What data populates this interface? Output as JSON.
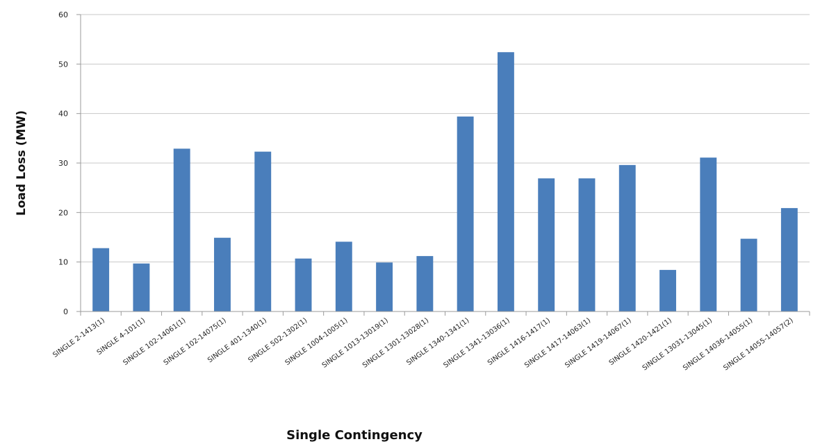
{
  "chart_data": {
    "type": "bar",
    "title": "",
    "xlabel": "Single Contingency",
    "ylabel": "Load Loss (MW)",
    "ylim": [
      0,
      60
    ],
    "yticks": [
      0,
      10,
      20,
      30,
      40,
      50,
      60
    ],
    "grid": true,
    "legend": "none",
    "bar_color": "#4a7ebb",
    "categories": [
      "SINGLE 2-1413(1)",
      "SINGLE 4-101(1)",
      "SINGLE 102-14061(1)",
      "SINGLE 102-14075(1)",
      "SINGLE 401-1340(1)",
      "SINGLE 502-1302(1)",
      "SINGLE 1004-1005(1)",
      "SINGLE 1013-13019(1)",
      "SINGLE 1301-13028(1)",
      "SINGLE 1340-1341(1)",
      "SINGLE 1341-13036(1)",
      "SINGLE 1416-1417(1)",
      "SINGLE 1417-14063(1)",
      "SINGLE 1419-14067(1)",
      "SINGLE 1420-1421(1)",
      "SINGLE 13031-13045(1)",
      "SINGLE 14036-14055(1)",
      "SINGLE 14055-14057(2)"
    ],
    "values": [
      12.8,
      9.7,
      32.9,
      14.9,
      32.3,
      10.7,
      14.1,
      9.9,
      11.2,
      39.4,
      52.4,
      26.9,
      26.9,
      29.6,
      8.4,
      31.1,
      14.7,
      20.9
    ]
  }
}
